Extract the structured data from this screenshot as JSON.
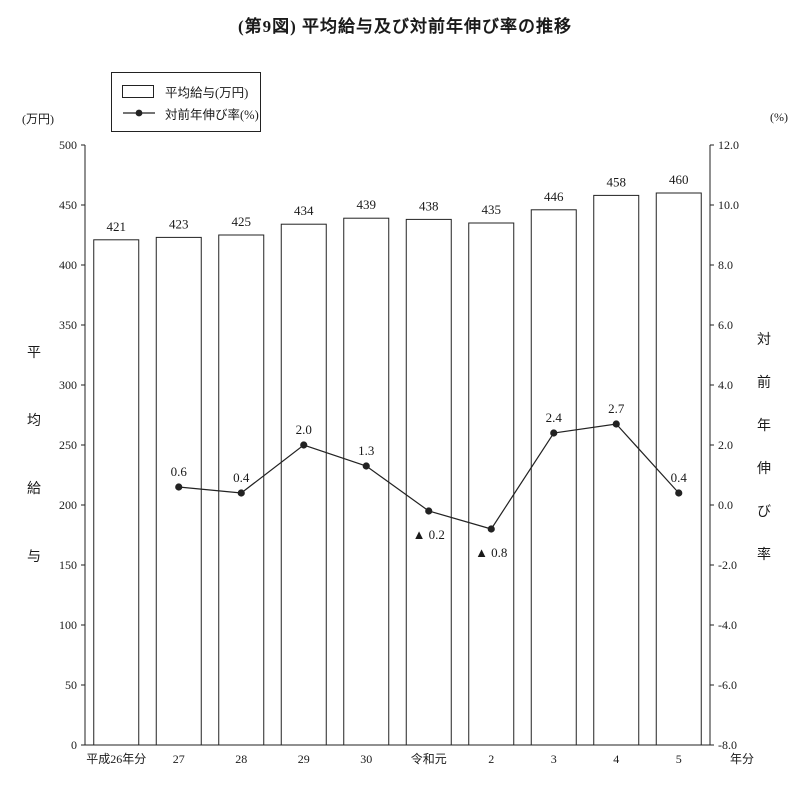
{
  "title": "(第9図) 平均給与及び対前年伸び率の推移",
  "legend": {
    "bar_label": "平均給与(万円)",
    "line_label": "対前年伸び率(%)"
  },
  "axes": {
    "left_unit": "(万円)",
    "right_unit": "(%)",
    "left_title": "平均給与",
    "right_title": "対前年伸び率",
    "x_suffix": "年分"
  },
  "colors": {
    "bar_fill": "#ffffff",
    "bar_stroke": "#222222",
    "line_color": "#222222",
    "text_color": "#1a1a1a"
  },
  "chart_data": {
    "type": "bar+line",
    "title": "(第9図) 平均給与及び対前年伸び率の推移",
    "categories": [
      "平成26年分",
      "27",
      "28",
      "29",
      "30",
      "令和元",
      "2",
      "3",
      "4",
      "5"
    ],
    "series": [
      {
        "name": "平均給与(万円)",
        "type": "bar",
        "axis": "left",
        "values": [
          421,
          423,
          425,
          434,
          439,
          438,
          435,
          446,
          458,
          460
        ]
      },
      {
        "name": "対前年伸び率(%)",
        "type": "line",
        "axis": "right",
        "values": [
          null,
          0.6,
          0.4,
          2.0,
          1.3,
          -0.2,
          -0.8,
          2.4,
          2.7,
          0.4
        ],
        "point_labels": [
          null,
          "0.6",
          "0.4",
          "2.0",
          "1.3",
          "▲ 0.2",
          "▲ 0.8",
          "2.4",
          "2.7",
          "0.4"
        ]
      }
    ],
    "left_axis": {
      "min": 0,
      "max": 500,
      "step": 50,
      "unit": "(万円)",
      "title": "平均給与"
    },
    "right_axis": {
      "min": -8.0,
      "max": 12.0,
      "step": 2.0,
      "unit": "(%)",
      "title": "対前年伸び率"
    },
    "grid": false,
    "legend_position": "top-left",
    "x_axis_suffix": "年分"
  }
}
